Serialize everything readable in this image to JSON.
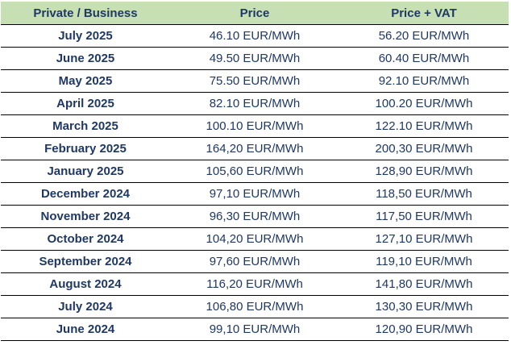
{
  "table": {
    "headers": [
      "Private / Business",
      "Price",
      "Price + VAT"
    ],
    "rows": [
      {
        "period": "July 2025",
        "price": "46.10 EUR/MWh",
        "price_vat": "56.20 EUR/MWh"
      },
      {
        "period": "June 2025",
        "price": "49.50 EUR/MWh",
        "price_vat": "60.40 EUR/MWh"
      },
      {
        "period": "May 2025",
        "price": "75.50 EUR/MWh",
        "price_vat": "92.10 EUR/MWh"
      },
      {
        "period": "April 2025",
        "price": "82.10 EUR/MWh",
        "price_vat": "100.20 EUR/MWh"
      },
      {
        "period": "March 2025",
        "price": "100.10 EUR/MWh",
        "price_vat": "122.10 EUR/MWh"
      },
      {
        "period": "February 2025",
        "price": "164,20 EUR/MWh",
        "price_vat": "200,30 EUR/MWh"
      },
      {
        "period": "January 2025",
        "price": "105,60 EUR/MWh",
        "price_vat": "128,90 EUR/MWh"
      },
      {
        "period": "December 2024",
        "price": "97,10 EUR/MWh",
        "price_vat": "118,50 EUR/MWh"
      },
      {
        "period": "November 2024",
        "price": "96,30 EUR/MWh",
        "price_vat": "117,50 EUR/MWh"
      },
      {
        "period": "October 2024",
        "price": "104,20 EUR/MWh",
        "price_vat": "127,10 EUR/MWh"
      },
      {
        "period": "September 2024",
        "price": "97,60 EUR/MWh",
        "price_vat": "119,10 EUR/MWh"
      },
      {
        "period": "August 2024",
        "price": "116,20 EUR/MWh",
        "price_vat": "141,80 EUR/MWh"
      },
      {
        "period": "July 2024",
        "price": "106,80 EUR/MWh",
        "price_vat": "130,30 EUR/MWh"
      },
      {
        "period": "June 2024",
        "price": "99,10 EUR/MWh",
        "price_vat": "120,90 EUR/MWh"
      }
    ]
  },
  "colors": {
    "header_background": "#c6e0b4",
    "text": "#1f3864",
    "rule": "#000000"
  }
}
